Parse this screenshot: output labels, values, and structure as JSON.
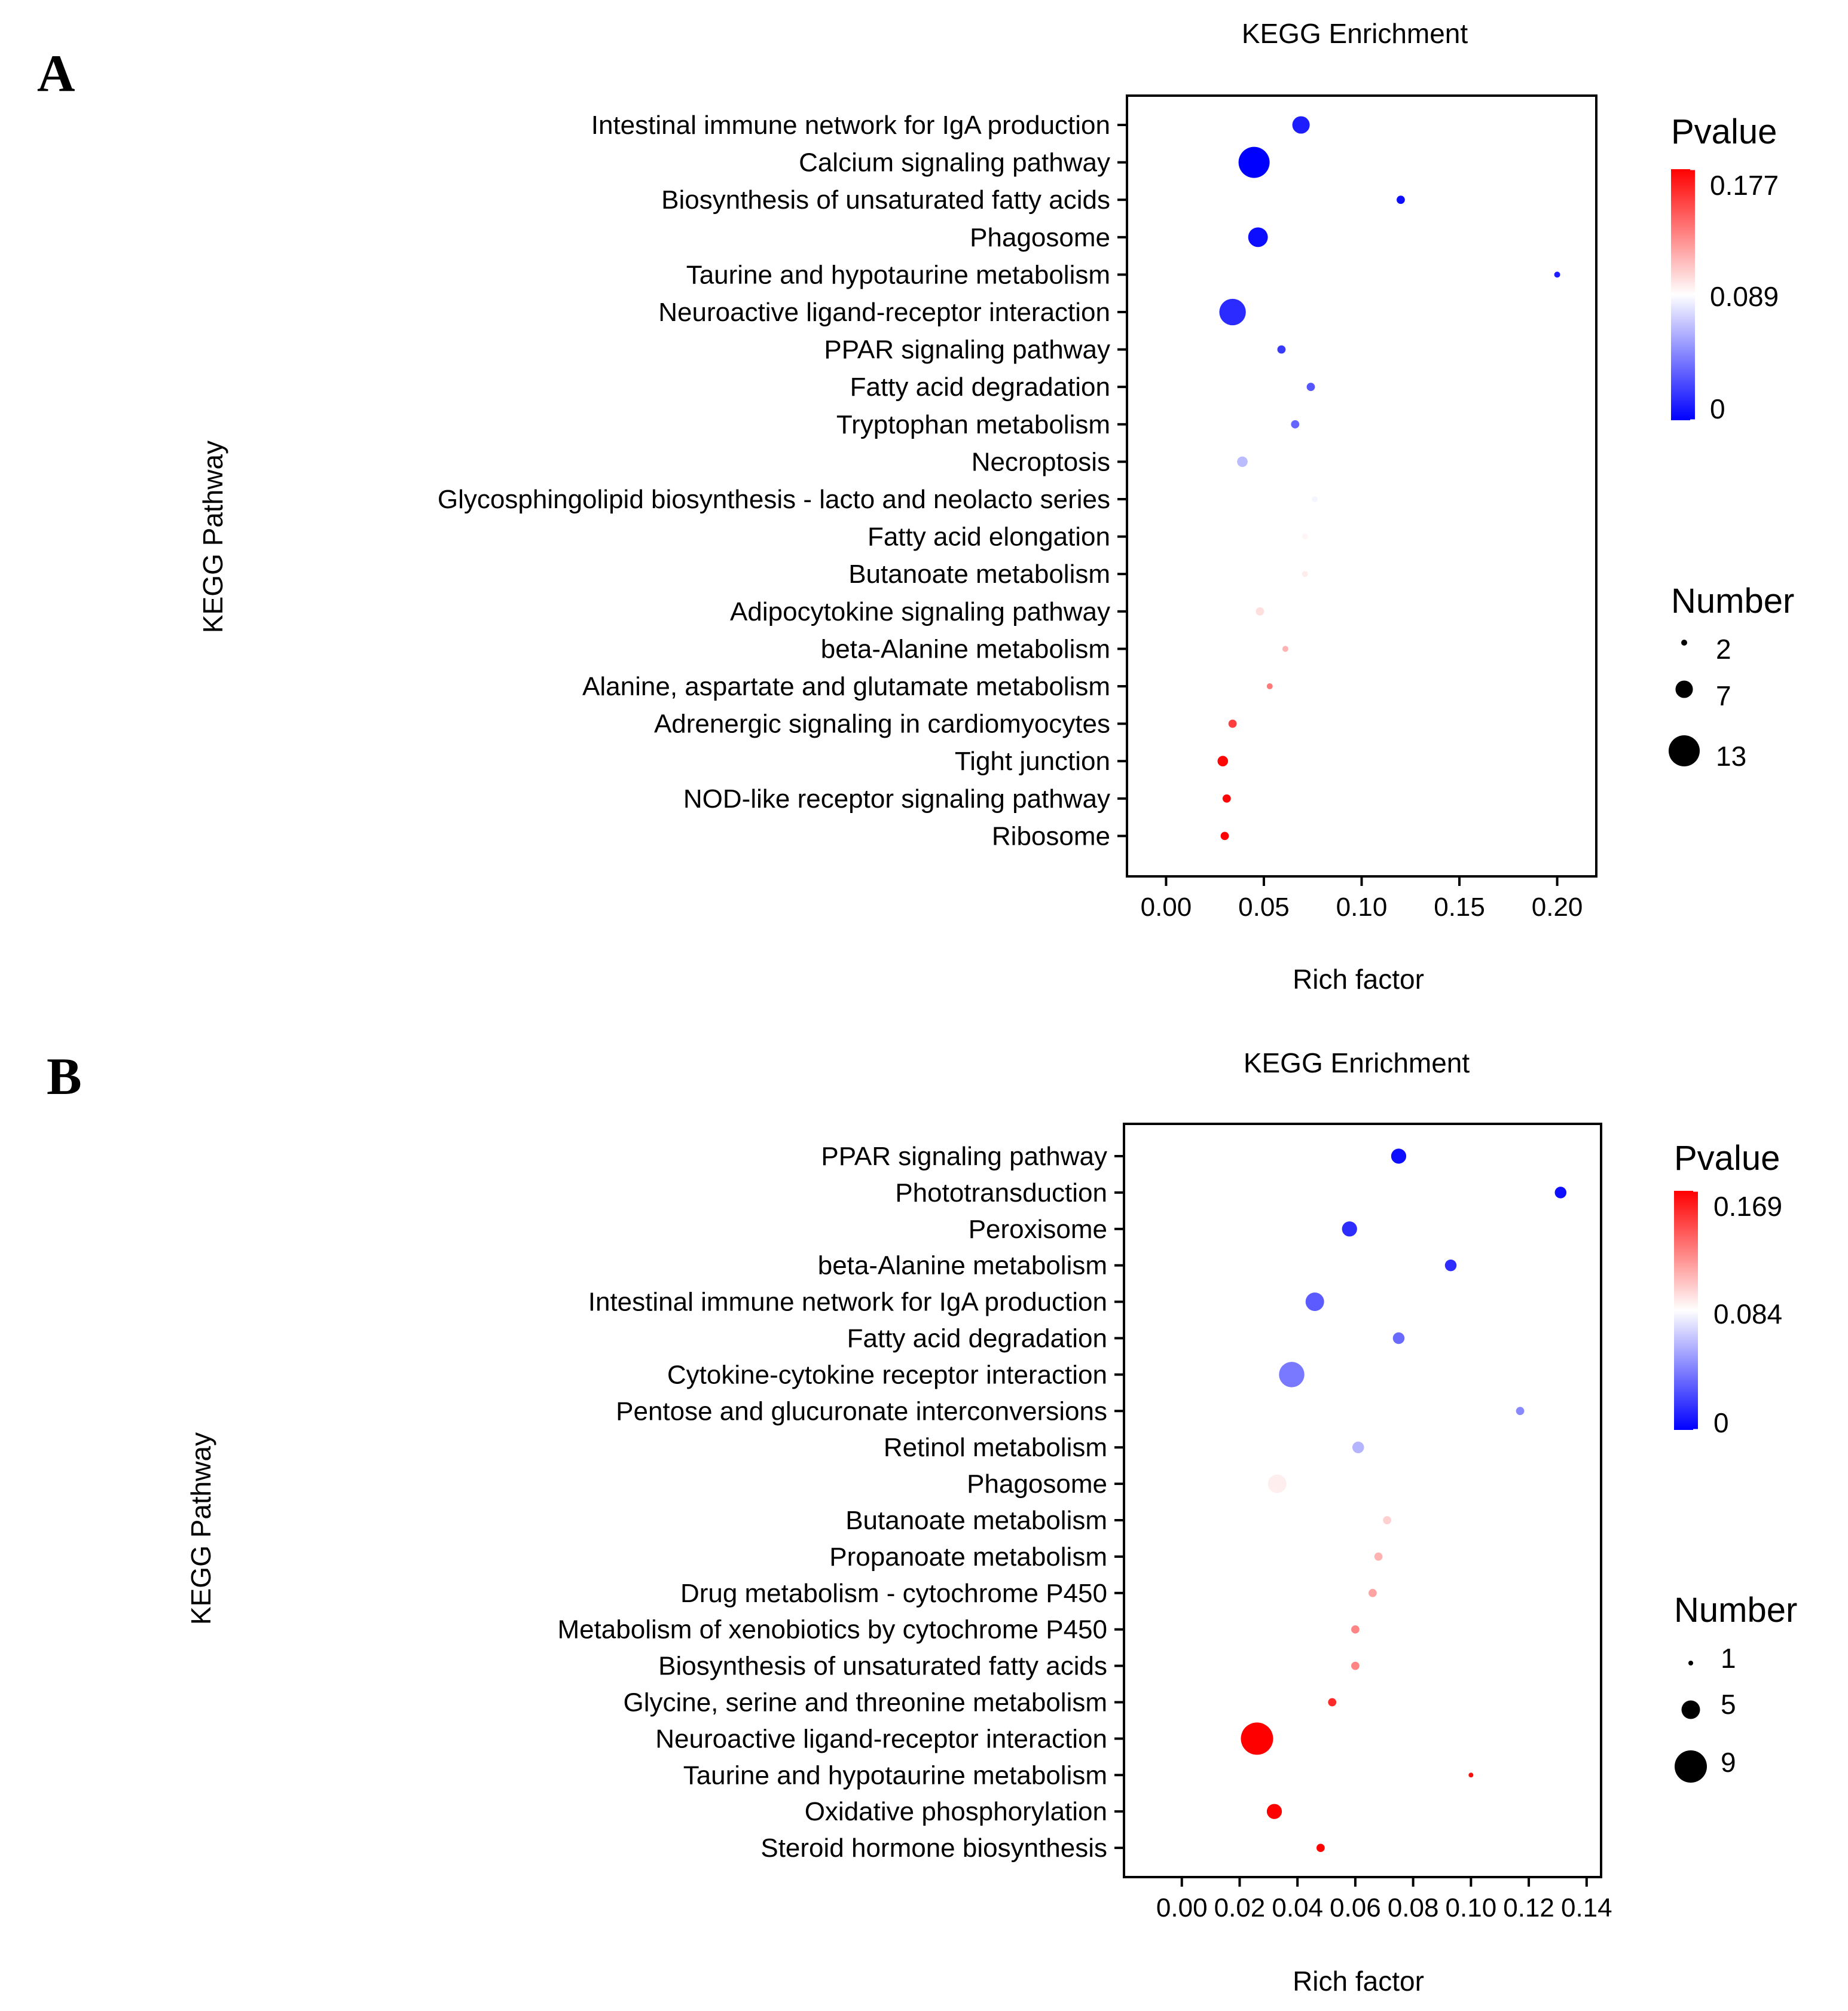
{
  "chart_data": [
    {
      "type": "scatter",
      "panel_label": "A",
      "title": "KEGG Enrichment",
      "xlabel": "Rich factor",
      "ylabel": "KEGG Pathway",
      "xlim": [
        -0.02,
        0.22
      ],
      "xticks": [
        "0.00",
        "0.05",
        "0.10",
        "0.15",
        "0.20"
      ],
      "xtick_values": [
        0.0,
        0.05,
        0.1,
        0.15,
        0.2
      ],
      "color_legend": {
        "title": "Pvalue",
        "labels": [
          "0.177",
          "0.089",
          "0"
        ],
        "max": 0.177
      },
      "size_legend": {
        "title": "Number",
        "values": [
          2,
          7,
          13
        ],
        "labels": [
          "2",
          "7",
          "13"
        ]
      },
      "points": [
        {
          "pathway": "Intestinal immune network for IgA production",
          "rich_factor": 0.069,
          "number": 7,
          "pvalue": 0.01
        },
        {
          "pathway": "Calcium signaling pathway",
          "rich_factor": 0.045,
          "number": 13,
          "pvalue": 0.0
        },
        {
          "pathway": "Biosynthesis of unsaturated fatty acids",
          "rich_factor": 0.12,
          "number": 3,
          "pvalue": 0.005
        },
        {
          "pathway": "Phagosome",
          "rich_factor": 0.047,
          "number": 8,
          "pvalue": 0.005
        },
        {
          "pathway": "Taurine and hypotaurine metabolism",
          "rich_factor": 0.2,
          "number": 2,
          "pvalue": 0.01
        },
        {
          "pathway": "Neuroactive ligand-receptor interaction",
          "rich_factor": 0.034,
          "number": 11,
          "pvalue": 0.015
        },
        {
          "pathway": "PPAR signaling pathway",
          "rich_factor": 0.059,
          "number": 3,
          "pvalue": 0.02
        },
        {
          "pathway": "Fatty acid degradation",
          "rich_factor": 0.074,
          "number": 3,
          "pvalue": 0.03
        },
        {
          "pathway": "Tryptophan metabolism",
          "rich_factor": 0.066,
          "number": 3,
          "pvalue": 0.035
        },
        {
          "pathway": "Necroptosis",
          "rich_factor": 0.039,
          "number": 4,
          "pvalue": 0.065
        },
        {
          "pathway": "Glycosphingolipid biosynthesis - lacto and neolacto series",
          "rich_factor": 0.076,
          "number": 2,
          "pvalue": 0.085
        },
        {
          "pathway": "Fatty acid elongation",
          "rich_factor": 0.071,
          "number": 2,
          "pvalue": 0.092
        },
        {
          "pathway": "Butanoate metabolism",
          "rich_factor": 0.071,
          "number": 2,
          "pvalue": 0.095
        },
        {
          "pathway": "Adipocytokine signaling pathway",
          "rich_factor": 0.048,
          "number": 3,
          "pvalue": 0.1
        },
        {
          "pathway": "beta-Alanine metabolism",
          "rich_factor": 0.061,
          "number": 2,
          "pvalue": 0.115
        },
        {
          "pathway": "Alanine, aspartate and glutamate metabolism",
          "rich_factor": 0.053,
          "number": 2,
          "pvalue": 0.135
        },
        {
          "pathway": "Adrenergic signaling in cardiomyocytes",
          "rich_factor": 0.034,
          "number": 3,
          "pvalue": 0.155
        },
        {
          "pathway": "Tight junction",
          "rich_factor": 0.029,
          "number": 4,
          "pvalue": 0.175
        },
        {
          "pathway": "NOD-like receptor signaling pathway",
          "rich_factor": 0.031,
          "number": 3,
          "pvalue": 0.175
        },
        {
          "pathway": "Ribosome",
          "rich_factor": 0.03,
          "number": 3,
          "pvalue": 0.177
        }
      ]
    },
    {
      "type": "scatter",
      "panel_label": "B",
      "title": "KEGG Enrichment",
      "xlabel": "Rich factor",
      "ylabel": "KEGG Pathway",
      "xlim": [
        -0.02,
        0.145
      ],
      "xticks": [
        "0.00",
        "0.02",
        "0.04",
        "0.06",
        "0.08",
        "0.10",
        "0.12",
        "0.14"
      ],
      "xtick_values": [
        0.0,
        0.02,
        0.04,
        0.06,
        0.08,
        0.1,
        0.12,
        0.14
      ],
      "color_legend": {
        "title": "Pvalue",
        "labels": [
          "0.169",
          "0.084",
          "0"
        ],
        "max": 0.169
      },
      "size_legend": {
        "title": "Number",
        "values": [
          1,
          5,
          9
        ],
        "labels": [
          "1",
          "5",
          "9"
        ]
      },
      "points": [
        {
          "pathway": "PPAR signaling pathway",
          "rich_factor": 0.075,
          "number": 4,
          "pvalue": 0.005
        },
        {
          "pathway": "Phototransduction",
          "rich_factor": 0.131,
          "number": 3,
          "pvalue": 0.005
        },
        {
          "pathway": "Peroxisome",
          "rich_factor": 0.058,
          "number": 4,
          "pvalue": 0.015
        },
        {
          "pathway": "beta-Alanine metabolism",
          "rich_factor": 0.093,
          "number": 3,
          "pvalue": 0.015
        },
        {
          "pathway": "Intestinal immune network for IgA production",
          "rich_factor": 0.046,
          "number": 5,
          "pvalue": 0.03
        },
        {
          "pathway": "Fatty acid degradation",
          "rich_factor": 0.075,
          "number": 3,
          "pvalue": 0.035
        },
        {
          "pathway": "Cytokine-cytokine receptor interaction",
          "rich_factor": 0.038,
          "number": 7,
          "pvalue": 0.04
        },
        {
          "pathway": "Pentose and glucuronate interconversions",
          "rich_factor": 0.117,
          "number": 2,
          "pvalue": 0.045
        },
        {
          "pathway": "Retinol metabolism",
          "rich_factor": 0.061,
          "number": 3,
          "pvalue": 0.06
        },
        {
          "pathway": "Phagosome",
          "rich_factor": 0.033,
          "number": 5,
          "pvalue": 0.09
        },
        {
          "pathway": "Butanoate metabolism",
          "rich_factor": 0.071,
          "number": 2,
          "pvalue": 0.1
        },
        {
          "pathway": "Propanoate metabolism",
          "rich_factor": 0.068,
          "number": 2,
          "pvalue": 0.11
        },
        {
          "pathway": "Drug metabolism - cytochrome P450",
          "rich_factor": 0.066,
          "number": 2,
          "pvalue": 0.115
        },
        {
          "pathway": "Metabolism of xenobiotics by cytochrome P450",
          "rich_factor": 0.06,
          "number": 2,
          "pvalue": 0.125
        },
        {
          "pathway": "Biosynthesis of unsaturated fatty acids",
          "rich_factor": 0.06,
          "number": 2,
          "pvalue": 0.125
        },
        {
          "pathway": "Glycine, serine and threonine metabolism",
          "rich_factor": 0.052,
          "number": 2,
          "pvalue": 0.155
        },
        {
          "pathway": "Neuroactive ligand-receptor interaction",
          "rich_factor": 0.026,
          "number": 9,
          "pvalue": 0.169
        },
        {
          "pathway": "Taurine and hypotaurine metabolism",
          "rich_factor": 0.1,
          "number": 1,
          "pvalue": 0.165
        },
        {
          "pathway": "Oxidative phosphorylation",
          "rich_factor": 0.032,
          "number": 4,
          "pvalue": 0.169
        },
        {
          "pathway": "Steroid hormone biosynthesis",
          "rich_factor": 0.048,
          "number": 2,
          "pvalue": 0.169
        }
      ]
    }
  ]
}
